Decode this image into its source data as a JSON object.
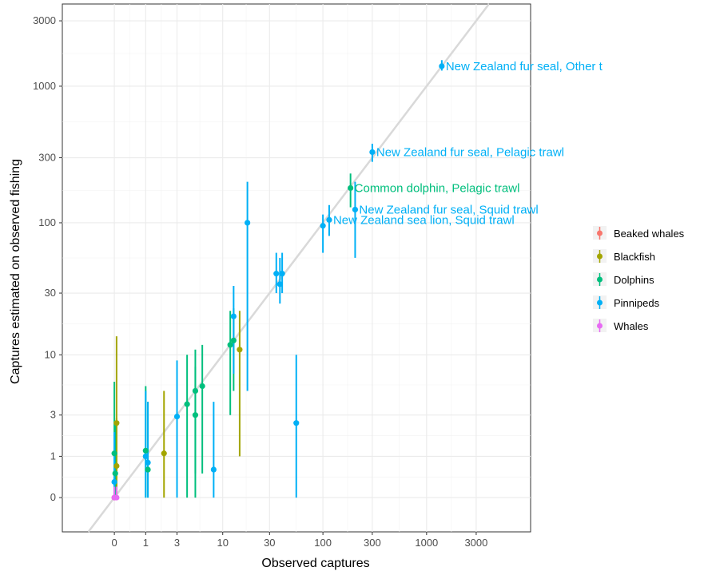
{
  "chart_data": {
    "type": "scatter",
    "xlabel": "Observed captures",
    "ylabel": "Captures estimated on observed fishing",
    "x_scale": "log1p",
    "y_scale": "log1p",
    "x_ticks": [
      {
        "value": 0,
        "label": "0"
      },
      {
        "value": 1,
        "label": "1"
      },
      {
        "value": 3,
        "label": "3"
      },
      {
        "value": 10,
        "label": "10"
      },
      {
        "value": 30,
        "label": "30"
      },
      {
        "value": 100,
        "label": "100"
      },
      {
        "value": 300,
        "label": "300"
      },
      {
        "value": 1000,
        "label": "1000"
      },
      {
        "value": 3000,
        "label": "3000"
      }
    ],
    "y_ticks": [
      {
        "value": 0,
        "label": "0"
      },
      {
        "value": 1,
        "label": "1"
      },
      {
        "value": 3,
        "label": "3"
      },
      {
        "value": 10,
        "label": "10"
      },
      {
        "value": 30,
        "label": "30"
      },
      {
        "value": 100,
        "label": "100"
      },
      {
        "value": 300,
        "label": "300"
      },
      {
        "value": 1000,
        "label": "1000"
      },
      {
        "value": 3000,
        "label": "3000"
      }
    ],
    "grid": true,
    "reference_line": "y = x",
    "legend_position": "right",
    "series": [
      {
        "name": "Beaked whales",
        "color": "#F8766D",
        "points": [
          {
            "x": 0,
            "y": 0,
            "lo": 0,
            "hi": 0.3
          }
        ]
      },
      {
        "name": "Blackfish",
        "color": "#A3A500",
        "points": [
          {
            "x": 0.05,
            "y": 2.5,
            "lo": 0,
            "hi": 14
          },
          {
            "x": 0.05,
            "y": 0.7,
            "lo": 0,
            "hi": 2.8
          },
          {
            "x": 2,
            "y": 1.1,
            "lo": 0,
            "hi": 5
          },
          {
            "x": 15,
            "y": 11,
            "lo": 1,
            "hi": 22
          }
        ]
      },
      {
        "name": "Dolphins",
        "color": "#00BF7D",
        "points": [
          {
            "x": 0,
            "y": 1.1,
            "lo": 0,
            "hi": 6
          },
          {
            "x": 0.02,
            "y": 0.5,
            "lo": 0,
            "hi": 2.5
          },
          {
            "x": 1,
            "y": 1.2,
            "lo": 0,
            "hi": 5.5
          },
          {
            "x": 1.1,
            "y": 0.6,
            "lo": 0,
            "hi": 4
          },
          {
            "x": 4,
            "y": 3.8,
            "lo": 0,
            "hi": 10
          },
          {
            "x": 5,
            "y": 5,
            "lo": 0.5,
            "hi": 11
          },
          {
            "x": 5,
            "y": 3,
            "lo": 0,
            "hi": 8
          },
          {
            "x": 6,
            "y": 5.5,
            "lo": 0.5,
            "hi": 12
          },
          {
            "x": 12,
            "y": 12,
            "lo": 3,
            "hi": 22
          },
          {
            "x": 13,
            "y": 13,
            "lo": 5,
            "hi": 23
          },
          {
            "x": 185,
            "y": 180,
            "lo": 130,
            "hi": 230
          }
        ]
      },
      {
        "name": "Pinnipeds",
        "color": "#00B0F6",
        "points": [
          {
            "x": 0,
            "y": 0.3,
            "lo": 0,
            "hi": 2
          },
          {
            "x": 1,
            "y": 1,
            "lo": 0,
            "hi": 5
          },
          {
            "x": 1.1,
            "y": 0.8,
            "lo": 0,
            "hi": 4
          },
          {
            "x": 3,
            "y": 2.9,
            "lo": 0,
            "hi": 9
          },
          {
            "x": 8,
            "y": 0.6,
            "lo": 0,
            "hi": 4
          },
          {
            "x": 13,
            "y": 20,
            "lo": 7,
            "hi": 34
          },
          {
            "x": 18,
            "y": 100,
            "lo": 5,
            "hi": 200
          },
          {
            "x": 35,
            "y": 42,
            "lo": 30,
            "hi": 60
          },
          {
            "x": 38,
            "y": 35,
            "lo": 25,
            "hi": 55
          },
          {
            "x": 40,
            "y": 42,
            "lo": 30,
            "hi": 60
          },
          {
            "x": 55,
            "y": 2.5,
            "lo": 0,
            "hi": 10
          },
          {
            "x": 100,
            "y": 95,
            "lo": 60,
            "hi": 115
          },
          {
            "x": 115,
            "y": 105,
            "lo": 80,
            "hi": 135
          },
          {
            "x": 205,
            "y": 125,
            "lo": 55,
            "hi": 200
          },
          {
            "x": 300,
            "y": 330,
            "lo": 280,
            "hi": 380
          },
          {
            "x": 1400,
            "y": 1400,
            "lo": 1300,
            "hi": 1550
          }
        ]
      },
      {
        "name": "Whales",
        "color": "#E76BF3",
        "points": [
          {
            "x": 0,
            "y": 0,
            "lo": 0,
            "hi": 0.2
          },
          {
            "x": 0.05,
            "y": 0,
            "lo": 0,
            "hi": 0.2
          }
        ]
      }
    ],
    "annotations": [
      {
        "text": "New Zealand fur seal, Other t",
        "x": 1400,
        "y": 1400,
        "series": "Pinnipeds"
      },
      {
        "text": "New Zealand fur seal, Pelagic trawl",
        "x": 300,
        "y": 330,
        "series": "Pinnipeds"
      },
      {
        "text": "Common dolphin, Pelagic trawl",
        "x": 185,
        "y": 180,
        "series": "Dolphins"
      },
      {
        "text": "New Zealand fur seal, Squid trawl",
        "x": 205,
        "y": 125,
        "series": "Pinnipeds"
      },
      {
        "text": "New Zealand sea lion, Squid trawl",
        "x": 115,
        "y": 105,
        "series": "Pinnipeds"
      }
    ]
  }
}
